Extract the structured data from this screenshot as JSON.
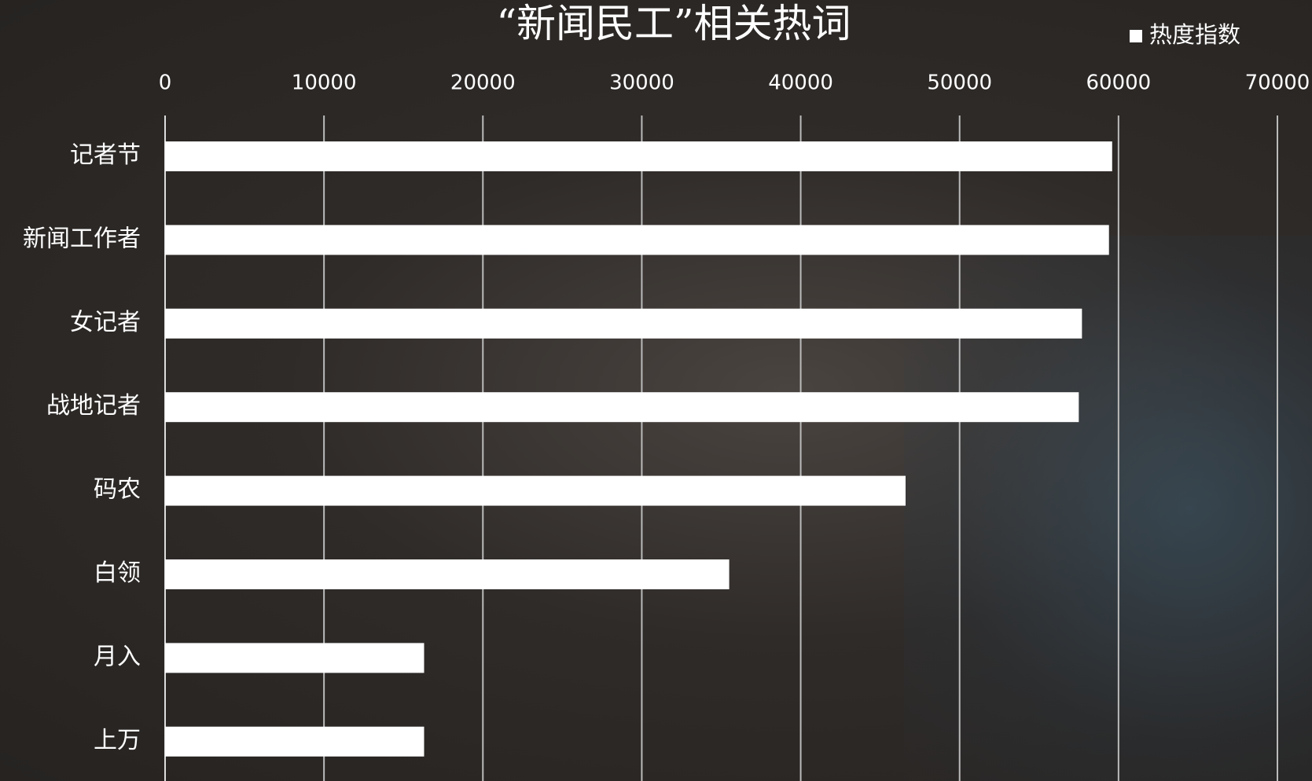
{
  "chart_data": {
    "type": "bar",
    "orientation": "horizontal",
    "title": "“新闻民工”相关热词",
    "categories": [
      "记者节",
      "新闻工作者",
      "女记者",
      "战地记者",
      "码农",
      "白领",
      "月入",
      "上万"
    ],
    "series": [
      {
        "name": "热度指数",
        "color": "#ffffff",
        "values": [
          59600,
          59400,
          57700,
          57500,
          46600,
          35500,
          16300,
          16300
        ]
      }
    ],
    "xlim": [
      0,
      70000
    ],
    "xticks": [
      0,
      10000,
      20000,
      30000,
      40000,
      50000,
      60000,
      70000
    ],
    "grid": true,
    "legend": "top-right"
  }
}
